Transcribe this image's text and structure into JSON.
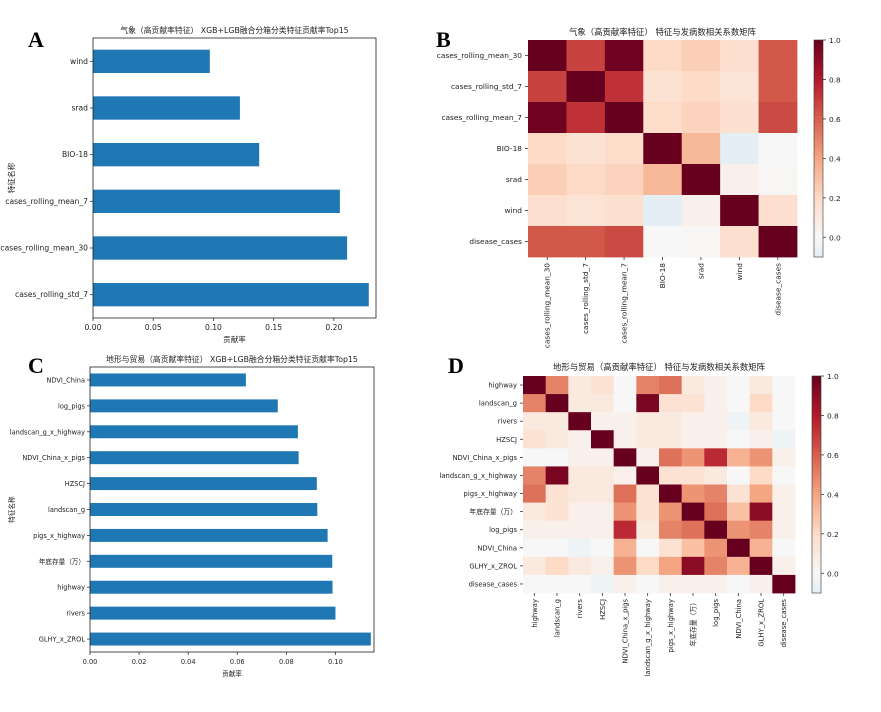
{
  "panels": [
    {
      "letter": "A"
    },
    {
      "letter": "B"
    },
    {
      "letter": "C"
    },
    {
      "letter": "D"
    }
  ],
  "chart_data": [
    {
      "id": "A",
      "type": "bar",
      "orientation": "horizontal",
      "title": "气象（高贡献率特征） XGB+LGB融合分箱分类特征贡献率Top15",
      "xlabel": "贡献率",
      "ylabel": "特征名称",
      "xlim": [
        0,
        0.235
      ],
      "xticks": [
        0.0,
        0.05,
        0.1,
        0.15,
        0.2
      ],
      "xtick_labels": [
        "0.00",
        "0.05",
        "0.10",
        "0.15",
        "0.20"
      ],
      "categories": [
        "wind",
        "srad",
        "BIO-18",
        "cases_rolling_mean_7",
        "cases_rolling_mean_30",
        "cases_rolling_std_7"
      ],
      "values": [
        0.097,
        0.122,
        0.138,
        0.205,
        0.211,
        0.229
      ],
      "bar_color": "#1f77b4"
    },
    {
      "id": "B",
      "type": "heatmap",
      "title": "气象（高贡献率特征） 特征与发病数相关系数矩阵",
      "labels": [
        "cases_rolling_mean_30",
        "cases_rolling_std_7",
        "cases_rolling_mean_7",
        "BIO-18",
        "srad",
        "wind",
        "disease_cases"
      ],
      "matrix": [
        [
          1.0,
          0.68,
          0.98,
          0.2,
          0.25,
          0.17,
          0.62
        ],
        [
          0.68,
          1.0,
          0.73,
          0.15,
          0.2,
          0.14,
          0.62
        ],
        [
          0.98,
          0.73,
          1.0,
          0.19,
          0.23,
          0.16,
          0.66
        ],
        [
          0.2,
          0.15,
          0.19,
          1.0,
          0.33,
          -0.1,
          0.0
        ],
        [
          0.25,
          0.2,
          0.23,
          0.33,
          1.0,
          0.05,
          0.01
        ],
        [
          0.17,
          0.14,
          0.16,
          -0.1,
          0.05,
          1.0,
          0.17
        ],
        [
          0.62,
          0.62,
          0.66,
          0.0,
          0.01,
          0.17,
          1.0
        ]
      ],
      "vmin": -0.1,
      "vmax": 1.0,
      "colorbar_ticks": [
        0.0,
        0.2,
        0.4,
        0.6,
        0.8,
        1.0
      ],
      "colorbar_labels": [
        "0.0",
        "0.2",
        "0.4",
        "0.6",
        "0.8",
        "1.0"
      ],
      "colormap": "RdBu_r"
    },
    {
      "id": "C",
      "type": "bar",
      "orientation": "horizontal",
      "title": "地形与贸易（高贡献率特征） XGB+LGB融合分箱分类特征贡献率Top15",
      "xlabel": "贡献率",
      "ylabel": "特征名称",
      "xlim": [
        0,
        0.1157
      ],
      "xticks": [
        0.0,
        0.02,
        0.04,
        0.06,
        0.08,
        0.1
      ],
      "xtick_labels": [
        "0.00",
        "0.02",
        "0.04",
        "0.06",
        "0.08",
        "0.10"
      ],
      "categories": [
        "NDVI_China",
        "log_pigs",
        "landscan_g_x_highway",
        "NDVI_China_x_pigs",
        "HZSCJ",
        "landscan_g",
        "pigs_x_highway",
        "年底存量（万）",
        "highway",
        "rivers",
        "GLHY_x_ZROL"
      ],
      "values": [
        0.0635,
        0.0765,
        0.0847,
        0.085,
        0.0924,
        0.0926,
        0.0968,
        0.0987,
        0.0988,
        0.1,
        0.1144
      ],
      "bar_color": "#1f77b4"
    },
    {
      "id": "D",
      "type": "heatmap",
      "title": "地形与贸易（高贡献率特征） 特征与发病数相关系数矩阵",
      "labels": [
        "highway",
        "landscan_g",
        "rivers",
        "HZSCJ",
        "NDVI_China_x_pigs",
        "landscan_g_x_highway",
        "pigs_x_highway",
        "年底存量（万）",
        "log_pigs",
        "NDVI_China",
        "GLHY_x_ZROL",
        "disease_cases"
      ],
      "matrix": [
        [
          1.0,
          0.5,
          0.1,
          0.15,
          0.0,
          0.5,
          0.55,
          0.1,
          0.05,
          0.0,
          0.1,
          0.0
        ],
        [
          0.5,
          1.0,
          0.1,
          0.1,
          0.0,
          0.95,
          0.15,
          0.15,
          0.05,
          0.0,
          0.2,
          0.0
        ],
        [
          0.1,
          0.1,
          1.0,
          0.05,
          0.05,
          0.1,
          0.1,
          0.05,
          0.05,
          -0.05,
          0.1,
          0.0
        ],
        [
          0.15,
          0.1,
          0.05,
          1.0,
          0.05,
          0.1,
          0.1,
          0.05,
          0.05,
          0.0,
          0.05,
          -0.05
        ],
        [
          0.0,
          0.0,
          0.05,
          0.05,
          1.0,
          0.05,
          0.55,
          0.45,
          0.75,
          0.35,
          0.45,
          0.05
        ],
        [
          0.5,
          0.95,
          0.1,
          0.1,
          0.05,
          1.0,
          0.15,
          0.15,
          0.1,
          0.0,
          0.2,
          0.0
        ],
        [
          0.55,
          0.15,
          0.1,
          0.1,
          0.55,
          0.15,
          1.0,
          0.45,
          0.5,
          0.15,
          0.4,
          0.05
        ],
        [
          0.1,
          0.15,
          0.05,
          0.05,
          0.45,
          0.15,
          0.45,
          1.0,
          0.55,
          0.3,
          0.9,
          0.05
        ],
        [
          0.05,
          0.05,
          0.05,
          0.05,
          0.75,
          0.1,
          0.5,
          0.55,
          1.0,
          0.45,
          0.5,
          0.05
        ],
        [
          0.0,
          0.0,
          -0.05,
          0.0,
          0.35,
          0.0,
          0.15,
          0.3,
          0.45,
          1.0,
          0.35,
          0.0
        ],
        [
          0.1,
          0.2,
          0.1,
          0.05,
          0.45,
          0.2,
          0.4,
          0.9,
          0.5,
          0.35,
          1.0,
          0.05
        ],
        [
          0.0,
          0.0,
          0.0,
          -0.05,
          0.05,
          0.0,
          0.05,
          0.05,
          0.05,
          0.0,
          0.05,
          1.0
        ]
      ],
      "vmin": -0.1,
      "vmax": 1.0,
      "colorbar_ticks": [
        0.0,
        0.2,
        0.4,
        0.6,
        0.8,
        1.0
      ],
      "colorbar_labels": [
        "0.0",
        "0.2",
        "0.4",
        "0.6",
        "0.8",
        "1.0"
      ],
      "colormap": "RdBu_r"
    }
  ]
}
